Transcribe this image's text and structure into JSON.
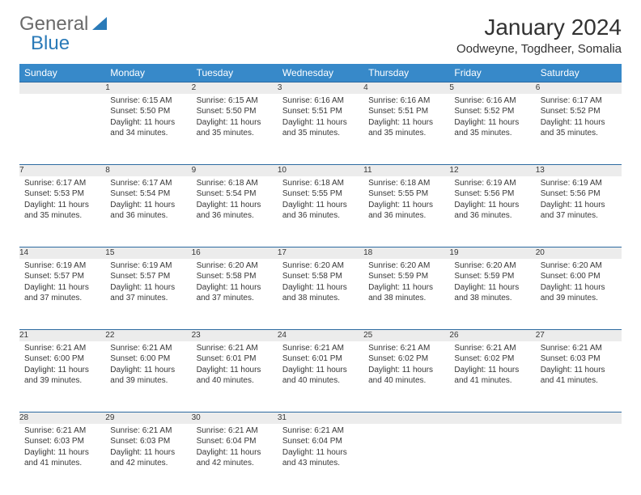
{
  "logo": {
    "word1": "General",
    "word2": "Blue"
  },
  "title": "January 2024",
  "location": "Oodweyne, Togdheer, Somalia",
  "colors": {
    "header_bg": "#3789c9",
    "header_text": "#ffffff",
    "rule": "#2d6aa0",
    "daynum_bg": "#ececec",
    "daynum_text": "#6f6f6f",
    "body_text": "#373737",
    "logo_gray": "#6a6a6a",
    "logo_blue": "#2a7ab8"
  },
  "typography": {
    "month_title_pt": 28,
    "location_pt": 15,
    "weekday_pt": 12,
    "daynum_pt": 12,
    "cell_pt": 10
  },
  "weekdays": [
    "Sunday",
    "Monday",
    "Tuesday",
    "Wednesday",
    "Thursday",
    "Friday",
    "Saturday"
  ],
  "layout": {
    "columns": 7,
    "rows": 5,
    "first_day_column": 1
  },
  "days": [
    {
      "n": 1,
      "sunrise": "6:15 AM",
      "sunset": "5:50 PM",
      "daylight": "11 hours and 34 minutes."
    },
    {
      "n": 2,
      "sunrise": "6:15 AM",
      "sunset": "5:50 PM",
      "daylight": "11 hours and 35 minutes."
    },
    {
      "n": 3,
      "sunrise": "6:16 AM",
      "sunset": "5:51 PM",
      "daylight": "11 hours and 35 minutes."
    },
    {
      "n": 4,
      "sunrise": "6:16 AM",
      "sunset": "5:51 PM",
      "daylight": "11 hours and 35 minutes."
    },
    {
      "n": 5,
      "sunrise": "6:16 AM",
      "sunset": "5:52 PM",
      "daylight": "11 hours and 35 minutes."
    },
    {
      "n": 6,
      "sunrise": "6:17 AM",
      "sunset": "5:52 PM",
      "daylight": "11 hours and 35 minutes."
    },
    {
      "n": 7,
      "sunrise": "6:17 AM",
      "sunset": "5:53 PM",
      "daylight": "11 hours and 35 minutes."
    },
    {
      "n": 8,
      "sunrise": "6:17 AM",
      "sunset": "5:54 PM",
      "daylight": "11 hours and 36 minutes."
    },
    {
      "n": 9,
      "sunrise": "6:18 AM",
      "sunset": "5:54 PM",
      "daylight": "11 hours and 36 minutes."
    },
    {
      "n": 10,
      "sunrise": "6:18 AM",
      "sunset": "5:55 PM",
      "daylight": "11 hours and 36 minutes."
    },
    {
      "n": 11,
      "sunrise": "6:18 AM",
      "sunset": "5:55 PM",
      "daylight": "11 hours and 36 minutes."
    },
    {
      "n": 12,
      "sunrise": "6:19 AM",
      "sunset": "5:56 PM",
      "daylight": "11 hours and 36 minutes."
    },
    {
      "n": 13,
      "sunrise": "6:19 AM",
      "sunset": "5:56 PM",
      "daylight": "11 hours and 37 minutes."
    },
    {
      "n": 14,
      "sunrise": "6:19 AM",
      "sunset": "5:57 PM",
      "daylight": "11 hours and 37 minutes."
    },
    {
      "n": 15,
      "sunrise": "6:19 AM",
      "sunset": "5:57 PM",
      "daylight": "11 hours and 37 minutes."
    },
    {
      "n": 16,
      "sunrise": "6:20 AM",
      "sunset": "5:58 PM",
      "daylight": "11 hours and 37 minutes."
    },
    {
      "n": 17,
      "sunrise": "6:20 AM",
      "sunset": "5:58 PM",
      "daylight": "11 hours and 38 minutes."
    },
    {
      "n": 18,
      "sunrise": "6:20 AM",
      "sunset": "5:59 PM",
      "daylight": "11 hours and 38 minutes."
    },
    {
      "n": 19,
      "sunrise": "6:20 AM",
      "sunset": "5:59 PM",
      "daylight": "11 hours and 38 minutes."
    },
    {
      "n": 20,
      "sunrise": "6:20 AM",
      "sunset": "6:00 PM",
      "daylight": "11 hours and 39 minutes."
    },
    {
      "n": 21,
      "sunrise": "6:21 AM",
      "sunset": "6:00 PM",
      "daylight": "11 hours and 39 minutes."
    },
    {
      "n": 22,
      "sunrise": "6:21 AM",
      "sunset": "6:00 PM",
      "daylight": "11 hours and 39 minutes."
    },
    {
      "n": 23,
      "sunrise": "6:21 AM",
      "sunset": "6:01 PM",
      "daylight": "11 hours and 40 minutes."
    },
    {
      "n": 24,
      "sunrise": "6:21 AM",
      "sunset": "6:01 PM",
      "daylight": "11 hours and 40 minutes."
    },
    {
      "n": 25,
      "sunrise": "6:21 AM",
      "sunset": "6:02 PM",
      "daylight": "11 hours and 40 minutes."
    },
    {
      "n": 26,
      "sunrise": "6:21 AM",
      "sunset": "6:02 PM",
      "daylight": "11 hours and 41 minutes."
    },
    {
      "n": 27,
      "sunrise": "6:21 AM",
      "sunset": "6:03 PM",
      "daylight": "11 hours and 41 minutes."
    },
    {
      "n": 28,
      "sunrise": "6:21 AM",
      "sunset": "6:03 PM",
      "daylight": "11 hours and 41 minutes."
    },
    {
      "n": 29,
      "sunrise": "6:21 AM",
      "sunset": "6:03 PM",
      "daylight": "11 hours and 42 minutes."
    },
    {
      "n": 30,
      "sunrise": "6:21 AM",
      "sunset": "6:04 PM",
      "daylight": "11 hours and 42 minutes."
    },
    {
      "n": 31,
      "sunrise": "6:21 AM",
      "sunset": "6:04 PM",
      "daylight": "11 hours and 43 minutes."
    }
  ],
  "labels": {
    "sunrise": "Sunrise:",
    "sunset": "Sunset:",
    "daylight": "Daylight:"
  }
}
